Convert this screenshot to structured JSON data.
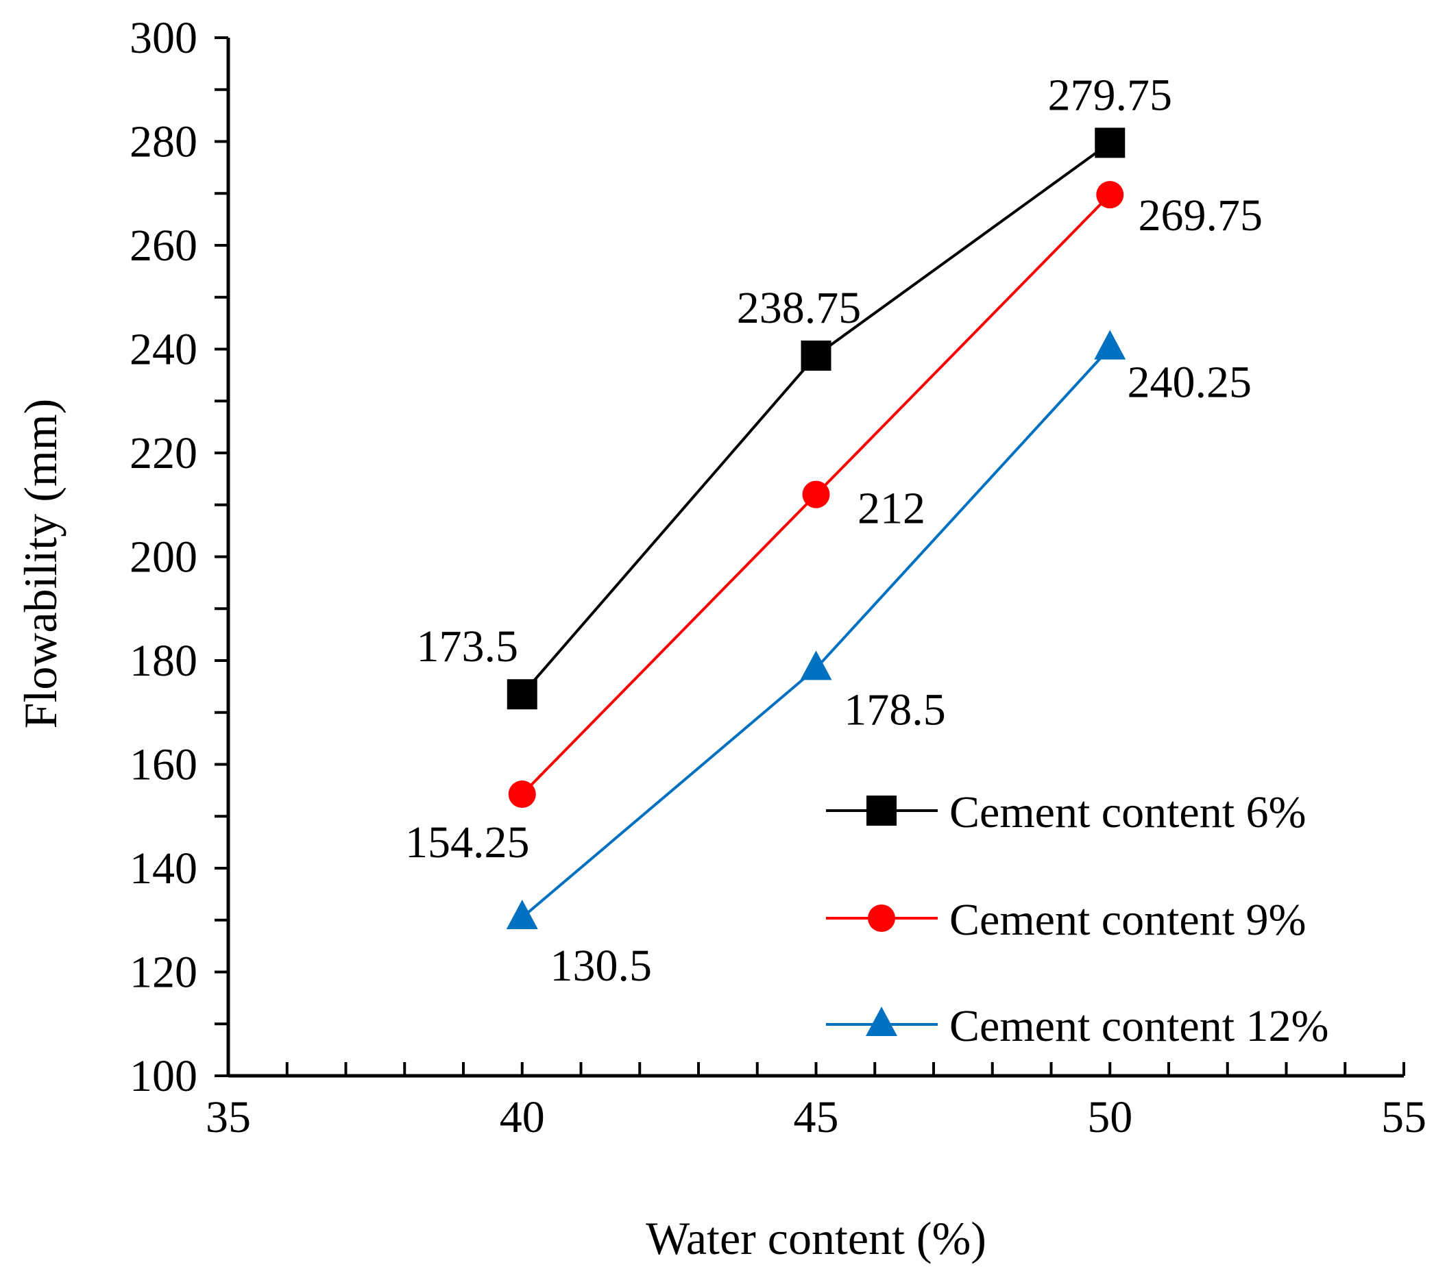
{
  "chart_data": {
    "type": "line",
    "xlabel": "Water content (%)",
    "ylabel": "Flowability (mm)",
    "xlim": [
      35,
      55
    ],
    "ylim": [
      100,
      300
    ],
    "x_ticks": [
      "35",
      "40",
      "45",
      "50",
      "55"
    ],
    "y_ticks": [
      "100",
      "120",
      "140",
      "160",
      "180",
      "200",
      "220",
      "240",
      "260",
      "280",
      "300"
    ],
    "x_minor_step": 1,
    "y_minor_step": 10,
    "grid": false,
    "legend_position": "bottom-right",
    "x": [
      40,
      45,
      50
    ],
    "series": [
      {
        "name": "Cement content 6%",
        "color": "#000000",
        "marker": "square",
        "values": [
          173.5,
          238.75,
          279.75
        ],
        "labels": [
          "173.5",
          "238.75",
          "279.75"
        ]
      },
      {
        "name": "Cement content 9%",
        "color": "#ff0000",
        "marker": "circle",
        "values": [
          154.25,
          212,
          269.75
        ],
        "labels": [
          "154.25",
          "212",
          "269.75"
        ]
      },
      {
        "name": "Cement content 12%",
        "color": "#0070c0",
        "marker": "triangle",
        "values": [
          130.5,
          178.5,
          240.25
        ],
        "labels": [
          "130.5",
          "178.5",
          "240.25"
        ]
      }
    ]
  }
}
